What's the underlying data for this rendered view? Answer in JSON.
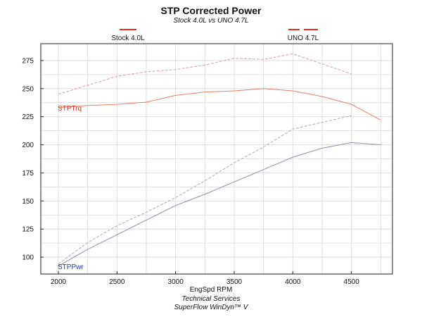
{
  "header": {
    "title": "STP Corrected Power",
    "subtitle": "Stock 4.0L vs UNO 4.7L"
  },
  "footer": {
    "line1": "Technical Services",
    "line2": "SuperFlow WinDyn™ V"
  },
  "colors": {
    "stock": "#a0a0b0",
    "uno": "#e8a9a0",
    "legend": "#e03020",
    "grid": "#d8d8d8",
    "tq_label": "#cc3322",
    "pwr_label": "#2233aa"
  },
  "chart_data": {
    "type": "line",
    "title": "STP Corrected Power",
    "subtitle": "Stock 4.0L vs UNO 4.7L",
    "xlabel": "EngSpd  RPM",
    "ylabel": "",
    "xlim": [
      1850,
      4850
    ],
    "ylim": [
      85,
      290
    ],
    "xticks": [
      2000,
      2500,
      3000,
      3500,
      4000,
      4500
    ],
    "yticks": [
      100,
      125,
      150,
      175,
      200,
      225,
      250,
      275
    ],
    "grid": true,
    "legend": [
      "Stock 4.0L",
      "UNO 4.7L"
    ],
    "curve_labels": {
      "torque": "STPTrq",
      "power": "STPPwr"
    },
    "series": [
      {
        "name": "Stock 4.0L",
        "group": "Stock 4.0L",
        "quantity": "power",
        "dash": "solid",
        "x": [
          2000,
          2250,
          2500,
          2750,
          3000,
          3250,
          3500,
          3750,
          4000,
          4250,
          4500,
          4750
        ],
        "y": [
          92,
          107,
          120,
          133,
          146,
          156,
          167,
          178,
          189,
          197,
          202,
          200
        ]
      },
      {
        "name": "UNO 4.7L",
        "group": "UNO 4.7L",
        "quantity": "power",
        "dash": "dashed",
        "x": [
          2000,
          2250,
          2500,
          2750,
          3000,
          3250,
          3500,
          3750,
          4000,
          4250,
          4500
        ],
        "y": [
          94,
          113,
          128,
          140,
          153,
          168,
          184,
          198,
          214,
          220,
          226
        ]
      },
      {
        "name": "Stock 4.0L",
        "group": "Stock 4.0L",
        "quantity": "torque",
        "dash": "solid",
        "x": [
          2000,
          2250,
          2500,
          2750,
          3000,
          3250,
          3500,
          3750,
          4000,
          4250,
          4500,
          4750
        ],
        "y": [
          233,
          235,
          236,
          238,
          244,
          247,
          248,
          250,
          248,
          243,
          236,
          222
        ]
      },
      {
        "name": "UNO 4.7L",
        "group": "UNO 4.7L",
        "quantity": "torque",
        "dash": "dashed",
        "x": [
          2000,
          2250,
          2500,
          2750,
          3000,
          3250,
          3500,
          3750,
          4000,
          4250,
          4500
        ],
        "y": [
          245,
          253,
          261,
          265,
          267,
          271,
          277,
          276,
          281,
          272,
          263
        ]
      }
    ]
  }
}
